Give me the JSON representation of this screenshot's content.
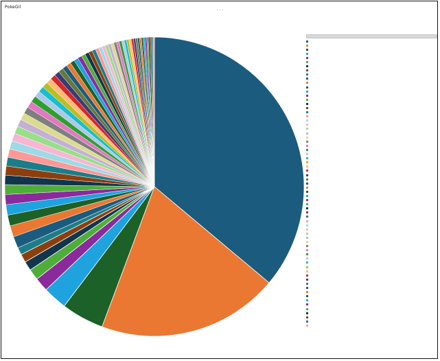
{
  "window": {
    "title": "PokeGil"
  },
  "chart_data": {
    "type": "pie",
    "title": "· · ·",
    "start_angle_deg": 0,
    "direction": "clockwise",
    "legend_position": "right",
    "slices": [
      {
        "value": 36.1,
        "color": "#1b5b7e"
      },
      {
        "value": 19.6,
        "color": "#ea7832"
      },
      {
        "value": 4.6,
        "color": "#1c6128"
      },
      {
        "value": 2.6,
        "color": "#1ea3de"
      },
      {
        "value": 1.5,
        "color": "#8b2a9b"
      },
      {
        "value": 1.2,
        "color": "#4fae3a"
      },
      {
        "value": 1.0,
        "color": "#12354c"
      },
      {
        "value": 0.9,
        "color": "#8c3f0e"
      },
      {
        "value": 0.8,
        "color": "#1c7d8a"
      }
    ],
    "tail": {
      "count": 60,
      "total": 31.7,
      "decay": 0.965,
      "palette": [
        "#1b5b7e",
        "#ea7832",
        "#1c6128",
        "#1ea3de",
        "#8b2a9b",
        "#4fae3a",
        "#12354c",
        "#8c3f0e",
        "#1c7d8a",
        "#ff9896",
        "#9edae5",
        "#f7b6d2",
        "#98df8a",
        "#c5b0d5",
        "#dbdb8d",
        "#7f7f7f",
        "#e377c2",
        "#2ca02c",
        "#aec7e8",
        "#17becf",
        "#bcbd22",
        "#ffbb78",
        "#d62728",
        "#393b79",
        "#637939"
      ]
    }
  }
}
